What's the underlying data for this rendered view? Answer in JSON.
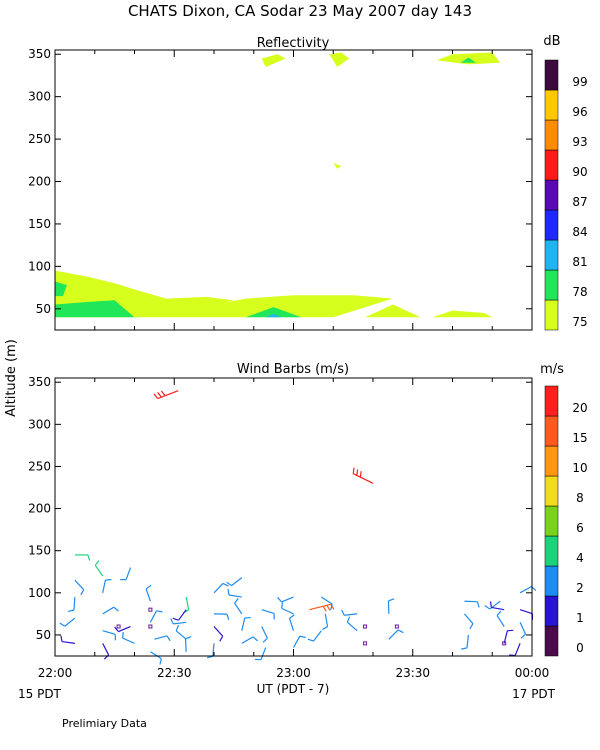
{
  "header": {
    "title": "CHATS Dixon, CA  Sodar  23 May 2007  day 143"
  },
  "y_axis_label": "Altitude (m)",
  "x_axis": {
    "label": "UT  (PDT - 7)",
    "ticks": [
      "22:00",
      "22:30",
      "23:00",
      "23:30",
      "00:00"
    ],
    "left_note": "15 PDT",
    "right_note": "17 PDT"
  },
  "footer": {
    "note": "Prelimiary Data"
  },
  "chart_data": [
    {
      "type": "heatmap",
      "title": "Reflectivity",
      "colorbar_unit": "dB",
      "xlim": [
        0,
        120
      ],
      "ylim": [
        25,
        355
      ],
      "yticks": [
        50,
        100,
        150,
        200,
        250,
        300,
        350
      ],
      "colorbar": {
        "labels": [
          "75",
          "78",
          "81",
          "84",
          "87",
          "90",
          "93",
          "96",
          "99"
        ],
        "colors": [
          "#d6ff1e",
          "#22e65a",
          "#22b4f0",
          "#1e28ff",
          "#5a0ab4",
          "#ff1a1a",
          "#ff8c00",
          "#ffc800",
          "#3c0a3c"
        ]
      },
      "regions": [
        {
          "level": "75",
          "points": [
            [
              0,
              95
            ],
            [
              8,
              88
            ],
            [
              15,
              80
            ],
            [
              22,
              70
            ],
            [
              28,
              62
            ],
            [
              38,
              64
            ],
            [
              45,
              60
            ],
            [
              30,
              40
            ],
            [
              0,
              40
            ]
          ]
        },
        {
          "level": "75",
          "points": [
            [
              30,
              40
            ],
            [
              35,
              50
            ],
            [
              48,
              62
            ],
            [
              60,
              66
            ],
            [
              75,
              66
            ],
            [
              85,
              62
            ],
            [
              70,
              40
            ]
          ]
        },
        {
          "level": "75",
          "points": [
            [
              78,
              40
            ],
            [
              85,
              55
            ],
            [
              92,
              40
            ]
          ]
        },
        {
          "level": "75",
          "points": [
            [
              95,
              40
            ],
            [
              100,
              48
            ],
            [
              108,
              45
            ],
            [
              110,
              40
            ]
          ]
        },
        {
          "level": "75",
          "points": [
            [
              52,
              345
            ],
            [
              56,
              350
            ],
            [
              58,
              345
            ],
            [
              53,
              335
            ]
          ]
        },
        {
          "level": "75",
          "points": [
            [
              69,
              350
            ],
            [
              72,
              352
            ],
            [
              74,
              345
            ],
            [
              71,
              335
            ]
          ]
        },
        {
          "level": "75",
          "points": [
            [
              70,
              222
            ],
            [
              72,
              218
            ],
            [
              71,
              215
            ]
          ]
        },
        {
          "level": "75",
          "points": [
            [
              96,
              343
            ],
            [
              100,
              350
            ],
            [
              110,
              352
            ],
            [
              112,
              340
            ],
            [
              104,
              338
            ]
          ]
        },
        {
          "level": "78",
          "points": [
            [
              0,
              40
            ],
            [
              0,
              55
            ],
            [
              8,
              58
            ],
            [
              15,
              60
            ],
            [
              20,
              40
            ]
          ]
        },
        {
          "level": "78",
          "points": [
            [
              0,
              65
            ],
            [
              0,
              82
            ],
            [
              3,
              78
            ],
            [
              2,
              65
            ]
          ]
        },
        {
          "level": "78",
          "points": [
            [
              48,
              40
            ],
            [
              55,
              52
            ],
            [
              62,
              40
            ]
          ]
        },
        {
          "level": "78",
          "points": [
            [
              102,
              340
            ],
            [
              104,
              346
            ],
            [
              106,
              340
            ]
          ]
        },
        {
          "level": "81",
          "points": [
            [
              53,
              40
            ],
            [
              55,
              44
            ],
            [
              57,
              40
            ]
          ]
        }
      ]
    },
    {
      "type": "scatter",
      "title": "Wind Barbs (m/s)",
      "colorbar_unit": "m/s",
      "xlim": [
        0,
        120
      ],
      "ylim": [
        25,
        355
      ],
      "yticks": [
        50,
        100,
        150,
        200,
        250,
        300,
        350
      ],
      "colorbar": {
        "labels": [
          "0",
          "1",
          "2",
          "4",
          "6",
          "8",
          "10",
          "15",
          "20"
        ],
        "colors": [
          "#4b0a4b",
          "#2814d2",
          "#1e8cf0",
          "#1ed27a",
          "#7ad21e",
          "#f0dc1e",
          "#ff9614",
          "#ff5a1e",
          "#ff1e1e"
        ]
      },
      "barbs": [
        {
          "t": 5,
          "alt": 145,
          "speed": 4
        },
        {
          "t": 5,
          "alt": 115,
          "speed": 3
        },
        {
          "t": 5,
          "alt": 95,
          "speed": 3
        },
        {
          "t": 5,
          "alt": 70,
          "speed": 3
        },
        {
          "t": 5,
          "alt": 40,
          "speed": 1
        },
        {
          "t": 12,
          "alt": 120,
          "speed": 4
        },
        {
          "t": 12,
          "alt": 100,
          "speed": 3
        },
        {
          "t": 12,
          "alt": 75,
          "speed": 3
        },
        {
          "t": 12,
          "alt": 55,
          "speed": 3
        },
        {
          "t": 12,
          "alt": 40,
          "speed": 1
        },
        {
          "t": 19,
          "alt": 130,
          "speed": 3
        },
        {
          "t": 19,
          "alt": 60,
          "speed": 1
        },
        {
          "t": 20,
          "alt": 40,
          "speed": 3
        },
        {
          "t": 24,
          "alt": 90,
          "speed": 3
        },
        {
          "t": 24,
          "alt": 65,
          "speed": 3
        },
        {
          "t": 25,
          "alt": 45,
          "speed": 3
        },
        {
          "t": 24,
          "alt": 30,
          "speed": 3
        },
        {
          "t": 33,
          "alt": 95,
          "speed": 4
        },
        {
          "t": 33,
          "alt": 80,
          "speed": 1
        },
        {
          "t": 33,
          "alt": 65,
          "speed": 3
        },
        {
          "t": 33,
          "alt": 45,
          "speed": 3
        },
        {
          "t": 33,
          "alt": 30,
          "speed": 3
        },
        {
          "t": 40,
          "alt": 100,
          "speed": 3
        },
        {
          "t": 40,
          "alt": 75,
          "speed": 2
        },
        {
          "t": 40,
          "alt": 60,
          "speed": 1
        },
        {
          "t": 40,
          "alt": 40,
          "speed": 3
        },
        {
          "t": 47,
          "alt": 118,
          "speed": 3
        },
        {
          "t": 47,
          "alt": 95,
          "speed": 3
        },
        {
          "t": 47,
          "alt": 75,
          "speed": 3
        },
        {
          "t": 47,
          "alt": 55,
          "speed": 3
        },
        {
          "t": 47,
          "alt": 40,
          "speed": 3
        },
        {
          "t": 52,
          "alt": 80,
          "speed": 3
        },
        {
          "t": 52,
          "alt": 60,
          "speed": 3
        },
        {
          "t": 53,
          "alt": 35,
          "speed": 3
        },
        {
          "t": 60,
          "alt": 95,
          "speed": 3
        },
        {
          "t": 60,
          "alt": 75,
          "speed": 3
        },
        {
          "t": 60,
          "alt": 55,
          "speed": 3
        },
        {
          "t": 60,
          "alt": 35,
          "speed": 3
        },
        {
          "t": 64,
          "alt": 80,
          "speed": 15
        },
        {
          "t": 67,
          "alt": 95,
          "speed": 3
        },
        {
          "t": 68,
          "alt": 75,
          "speed": 3
        },
        {
          "t": 67,
          "alt": 55,
          "speed": 3
        },
        {
          "t": 76,
          "alt": 75,
          "speed": 3
        },
        {
          "t": 76,
          "alt": 55,
          "speed": 3
        },
        {
          "t": 84,
          "alt": 75,
          "speed": 3
        },
        {
          "t": 84,
          "alt": 45,
          "speed": 3
        },
        {
          "t": 103,
          "alt": 90,
          "speed": 3
        },
        {
          "t": 103,
          "alt": 75,
          "speed": 3
        },
        {
          "t": 104,
          "alt": 50,
          "speed": 3
        },
        {
          "t": 112,
          "alt": 90,
          "speed": 3
        },
        {
          "t": 113,
          "alt": 80,
          "speed": 1
        },
        {
          "t": 113,
          "alt": 60,
          "speed": 3
        },
        {
          "t": 113,
          "alt": 40,
          "speed": 1
        },
        {
          "t": 117,
          "alt": 100,
          "speed": 3
        },
        {
          "t": 117,
          "alt": 80,
          "speed": 1
        },
        {
          "t": 117,
          "alt": 65,
          "speed": 3
        },
        {
          "t": 117,
          "alt": 40,
          "speed": 1
        },
        {
          "t": 31,
          "alt": 340,
          "speed": 20
        },
        {
          "t": 80,
          "alt": 230,
          "speed": 20
        }
      ],
      "calm_points": [
        {
          "t": 16,
          "alt": 60
        },
        {
          "t": 24,
          "alt": 80
        },
        {
          "t": 24,
          "alt": 60
        },
        {
          "t": 78,
          "alt": 60
        },
        {
          "t": 78,
          "alt": 40
        },
        {
          "t": 86,
          "alt": 60
        },
        {
          "t": 113,
          "alt": 40
        }
      ]
    }
  ]
}
